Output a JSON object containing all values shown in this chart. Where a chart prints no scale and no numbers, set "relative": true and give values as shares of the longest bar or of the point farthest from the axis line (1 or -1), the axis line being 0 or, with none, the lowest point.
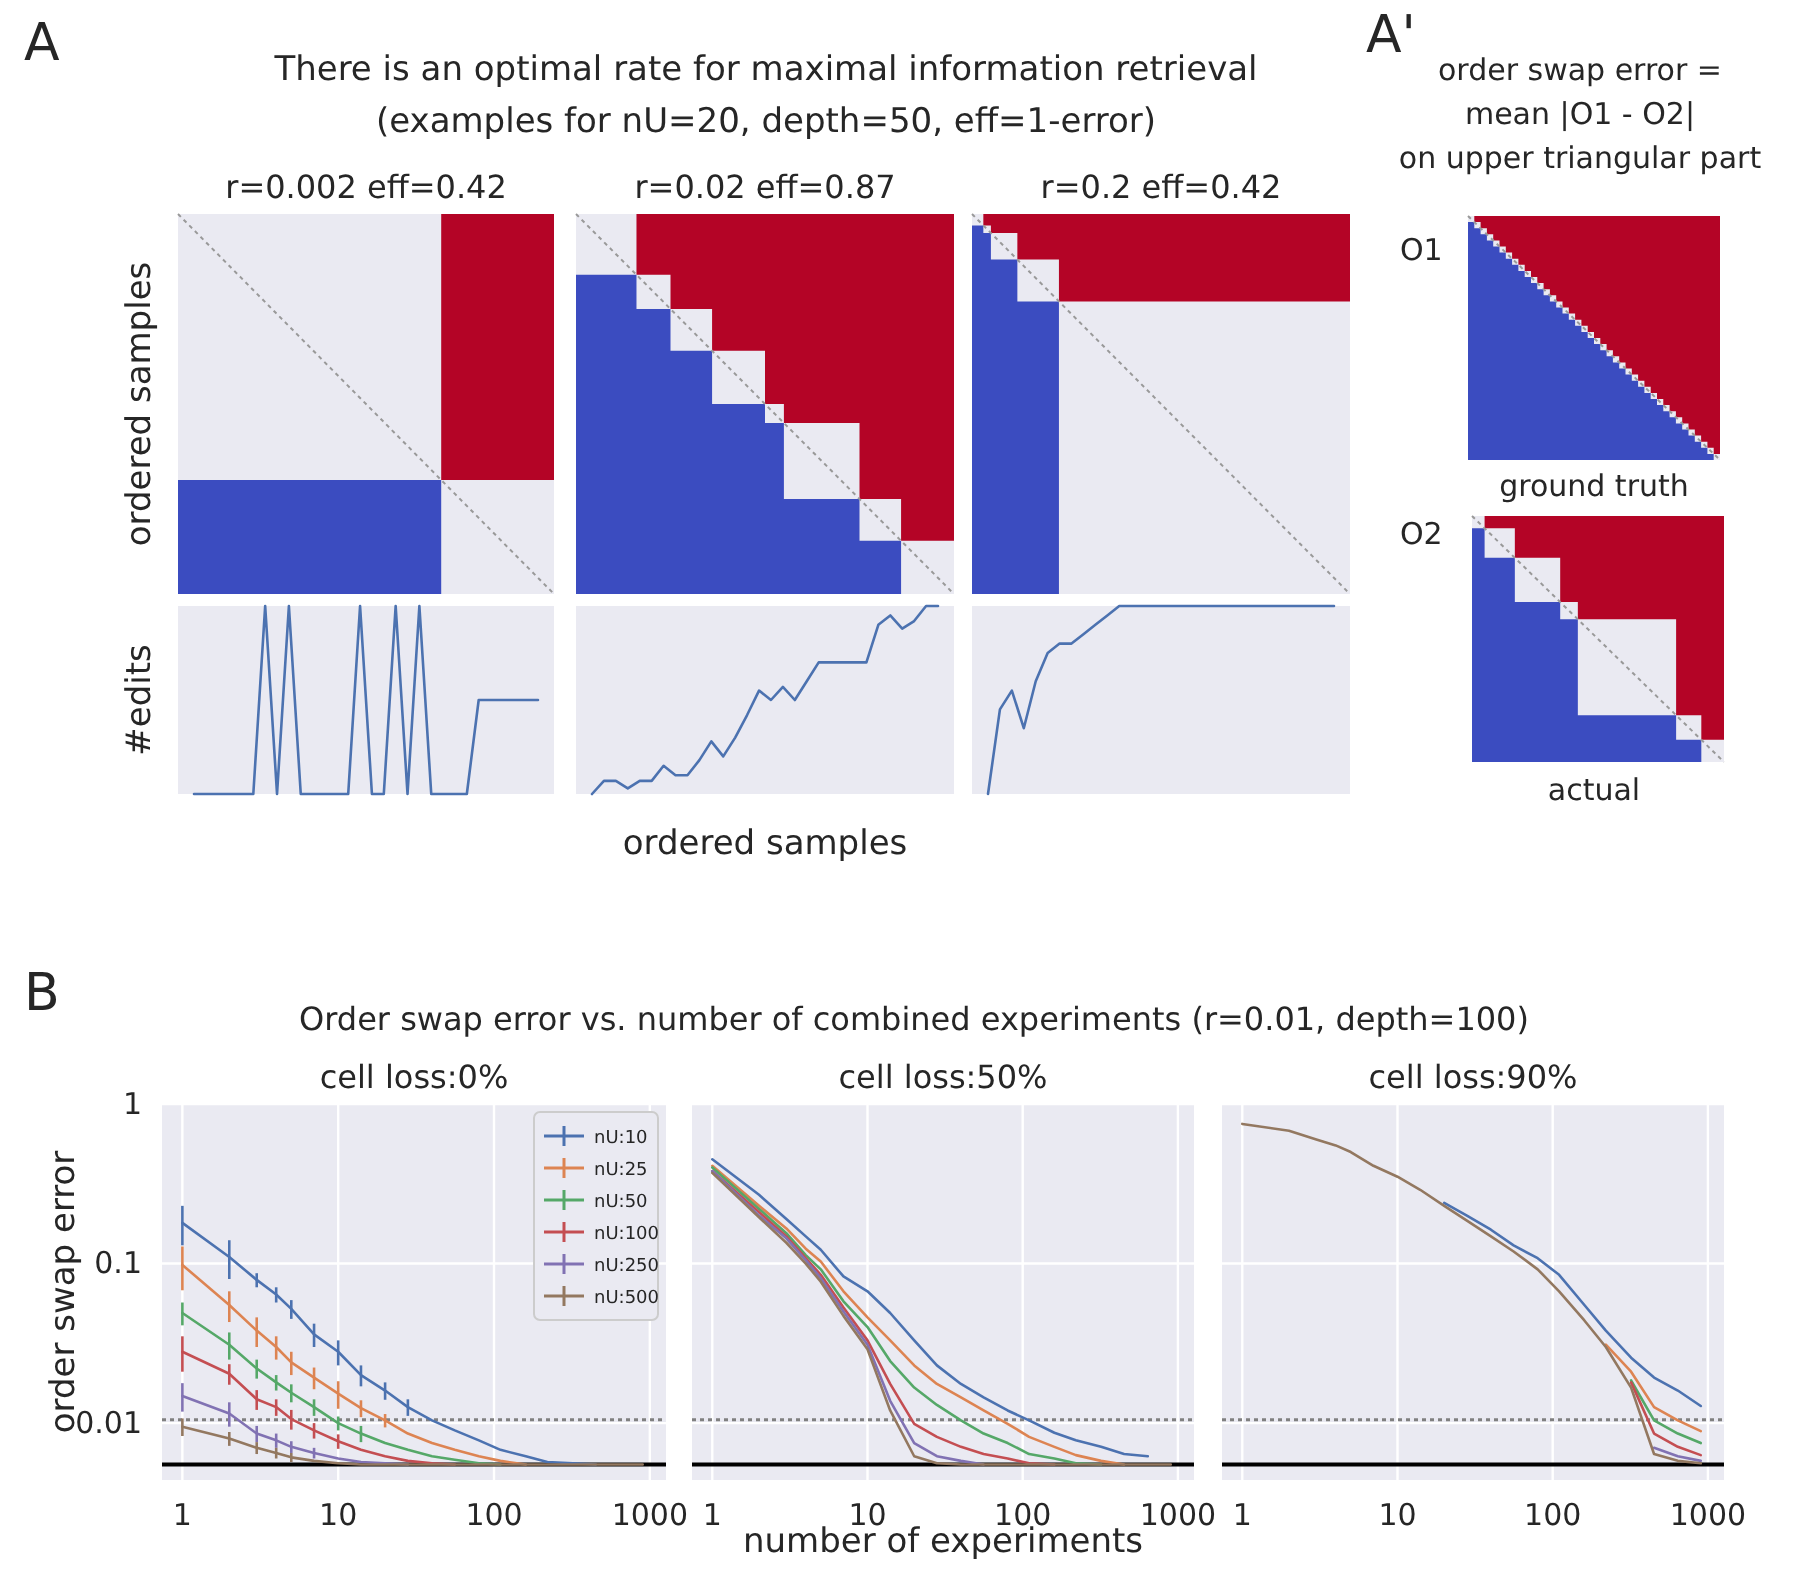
{
  "chart_data": [
    {
      "type": "other",
      "title": "r=0.002 eff=0.42",
      "ylabel": "ordered samples",
      "annotations": [
        "A",
        "There is an optimal rate for maximal information retrieval",
        "(examples for nU=20, depth=50, eff=1-error)"
      ]
    },
    {
      "type": "other",
      "title": "r=0.02 eff=0.87"
    },
    {
      "type": "other",
      "title": "r=0.2 eff=0.42"
    },
    {
      "type": "line",
      "relative": true,
      "ylabel": "#edits",
      "categories": [
        null,
        null,
        null,
        null,
        null,
        null,
        null,
        null,
        null,
        null,
        null,
        null,
        null,
        null,
        null,
        null,
        null,
        null,
        null,
        null,
        null,
        null,
        null,
        null,
        null,
        null,
        null,
        null,
        null,
        null
      ],
      "series": [
        {
          "color": "#4c72b0",
          "values": [
            0,
            0,
            0,
            0,
            0,
            0,
            1,
            0,
            1,
            0,
            0,
            0,
            0,
            0,
            1,
            0,
            0,
            1,
            0,
            1,
            0,
            0,
            0,
            0,
            0.5,
            0.5,
            0.5,
            0.5,
            0.5,
            0.5
          ]
        }
      ]
    },
    {
      "type": "line",
      "relative": true,
      "xlabel": "ordered samples",
      "categories": [
        null,
        null,
        null,
        null,
        null,
        null,
        null,
        null,
        null,
        null,
        null,
        null,
        null,
        null,
        null,
        null,
        null,
        null,
        null,
        null,
        null,
        null,
        null,
        null,
        null,
        null,
        null,
        null,
        null,
        null
      ],
      "series": [
        {
          "color": "#4c72b0",
          "values": [
            0,
            0.07,
            0.07,
            0.03,
            0.07,
            0.07,
            0.15,
            0.1,
            0.1,
            0.18,
            0.28,
            0.2,
            0.3,
            0.42,
            0.55,
            0.5,
            0.57,
            0.5,
            0.6,
            0.7,
            0.7,
            0.7,
            0.7,
            0.7,
            0.9,
            0.95,
            0.88,
            0.92,
            1,
            1
          ]
        }
      ]
    },
    {
      "type": "line",
      "relative": true,
      "categories": [
        null,
        null,
        null,
        null,
        null,
        null,
        null,
        null,
        null,
        null,
        null,
        null,
        null,
        null,
        null,
        null,
        null,
        null,
        null,
        null,
        null,
        null,
        null,
        null,
        null,
        null,
        null,
        null,
        null,
        null
      ],
      "series": [
        {
          "color": "#4c72b0",
          "values": [
            0,
            0.45,
            0.55,
            0.35,
            0.6,
            0.75,
            0.8,
            0.8,
            0.85,
            0.9,
            0.95,
            1,
            1,
            1,
            1,
            1,
            1,
            1,
            1,
            1,
            1,
            1,
            1,
            1,
            1,
            1,
            1,
            1,
            1,
            1
          ]
        }
      ]
    },
    {
      "type": "other",
      "annotations": [
        "A'",
        "order swap error =",
        "mean |O1 - O2|",
        "on upper triangular part",
        "O1",
        "ground truth",
        "O2",
        "actual"
      ]
    },
    {
      "type": "line",
      "title": "cell loss:0%",
      "ylabel": "order swap error",
      "log": "xy",
      "grid": true,
      "legend": "top right",
      "xlim": [
        0.74,
        1270
      ],
      "xticks": [
        1,
        10,
        100,
        1000
      ],
      "ylim": [
        0.0044,
        1
      ],
      "yticks": [
        1,
        0.1,
        0.01
      ],
      "annotations": [
        "B",
        "Order swap error vs. number of combined experiments (r=0.01, depth=100)"
      ],
      "ref_lines": [
        {
          "axis": "y",
          "value": 0.0105,
          "color": "#808080",
          "line_style": "dotted"
        },
        {
          "axis": "y",
          "value": 0.0055,
          "color": "#000000",
          "line_style": "solid"
        }
      ],
      "x": [
        1,
        2,
        3,
        4,
        5,
        7,
        10,
        14,
        20,
        28,
        40,
        56,
        80,
        110,
        160,
        220,
        320,
        450,
        640,
        900
      ],
      "series": [
        {
          "name": "nU:10",
          "color": "#4c72b0",
          "values": [
            0.18,
            0.11,
            0.079,
            0.064,
            0.052,
            0.036,
            0.028,
            0.02,
            0.016,
            0.0126,
            0.0104,
            0.009,
            0.0078,
            0.0068,
            0.0062,
            0.0057,
            0.0056,
            0.0055,
            null,
            null
          ],
          "errors": [
            0.05,
            0.03,
            0.008,
            0.007,
            0.007,
            0.006,
            0.005,
            0.003,
            0.002,
            0.0015,
            null,
            null,
            null,
            null,
            null,
            null,
            null,
            null,
            null,
            null
          ]
        },
        {
          "name": "nU:25",
          "color": "#dd8452",
          "values": [
            0.098,
            0.055,
            0.038,
            0.03,
            0.024,
            0.0193,
            0.0153,
            0.0124,
            0.0104,
            0.0086,
            0.0075,
            0.0068,
            0.0062,
            0.0058,
            0.0055,
            null,
            null,
            null,
            null,
            null
          ],
          "errors": [
            0.03,
            0.012,
            0.008,
            0.005,
            0.004,
            0.003,
            0.003,
            0.0015,
            0.001,
            null,
            null,
            null,
            null,
            null,
            null,
            null,
            null,
            null,
            null,
            null
          ]
        },
        {
          "name": "nU:50",
          "color": "#55a868",
          "values": [
            0.049,
            0.031,
            0.022,
            0.018,
            0.0155,
            0.0126,
            0.01,
            0.0086,
            0.0075,
            0.0068,
            0.0062,
            0.0059,
            0.0056,
            0.0055,
            null,
            null,
            null,
            null,
            null,
            null
          ],
          "errors": [
            0.008,
            0.006,
            0.003,
            0.002,
            0.002,
            0.0015,
            0.001,
            0.001,
            null,
            null,
            null,
            null,
            null,
            null,
            null,
            null,
            null,
            null,
            null,
            null
          ]
        },
        {
          "name": "nU:100",
          "color": "#c44e52",
          "values": [
            0.028,
            0.0204,
            0.0141,
            0.0126,
            0.0106,
            0.009,
            0.0077,
            0.0068,
            0.0062,
            0.0058,
            0.0056,
            0.0055,
            null,
            null,
            null,
            null,
            null,
            null,
            null,
            null
          ],
          "errors": [
            0.007,
            0.003,
            0.002,
            0.0015,
            0.0015,
            0.001,
            0.0008,
            null,
            null,
            null,
            null,
            null,
            null,
            null,
            null,
            null,
            null,
            null,
            null,
            null
          ]
        },
        {
          "name": "nU:250",
          "color": "#8172b3",
          "values": [
            0.0148,
            0.0115,
            0.0086,
            0.0078,
            0.0071,
            0.0065,
            0.006,
            0.0057,
            0.0056,
            0.0055,
            null,
            null,
            null,
            null,
            null,
            null,
            null,
            null,
            null,
            null
          ],
          "errors": [
            0.003,
            0.002,
            0.001,
            0.0008,
            0.0006,
            0.0005,
            null,
            null,
            null,
            null,
            null,
            null,
            null,
            null,
            null,
            null,
            null,
            null,
            null,
            null
          ]
        },
        {
          "name": "nU:500",
          "color": "#937860",
          "values": [
            0.0095,
            0.008,
            0.007,
            0.0065,
            0.0061,
            0.0058,
            0.0056,
            0.0055,
            0.0055,
            0.0055,
            0.0055,
            0.0055,
            0.0055,
            0.0055,
            0.0055,
            0.0055,
            0.0055,
            0.0055,
            0.0055,
            0.0055
          ],
          "errors": [
            0.0012,
            0.0008,
            0.0006,
            0.0005,
            0.0004,
            null,
            null,
            null,
            null,
            null,
            null,
            null,
            null,
            null,
            null,
            null,
            null,
            null,
            null,
            null
          ]
        }
      ]
    },
    {
      "type": "line",
      "title": "cell loss:50%",
      "xlabel": "number of experiments",
      "log": "xy",
      "grid": true,
      "tick_labels": "x",
      "xlim": [
        0.74,
        1270
      ],
      "xticks": [
        1,
        10,
        100,
        1000
      ],
      "ylim": [
        0.0044,
        1
      ],
      "yticks": [
        1,
        0.1,
        0.01
      ],
      "ref_lines": [
        {
          "axis": "y",
          "value": 0.0105,
          "color": "#808080",
          "line_style": "dotted"
        },
        {
          "axis": "y",
          "value": 0.0055,
          "color": "#000000",
          "line_style": "solid"
        }
      ],
      "x": [
        1,
        2,
        3,
        4,
        5,
        7,
        10,
        14,
        20,
        28,
        40,
        56,
        80,
        110,
        160,
        220,
        320,
        450,
        640,
        900
      ],
      "series": [
        {
          "color": "#4c72b0",
          "values": [
            0.45,
            0.27,
            0.19,
            0.148,
            0.122,
            0.083,
            0.067,
            0.049,
            0.033,
            0.023,
            0.0176,
            0.0145,
            0.012,
            0.0104,
            0.0087,
            0.0078,
            0.0071,
            0.0064,
            0.0062,
            null
          ]
        },
        {
          "color": "#dd8452",
          "values": [
            0.41,
            0.23,
            0.166,
            0.124,
            0.103,
            0.067,
            0.046,
            0.033,
            0.023,
            0.0176,
            0.0145,
            0.012,
            0.0099,
            0.0082,
            0.0071,
            0.0063,
            0.0058,
            0.0055,
            null,
            null
          ]
        },
        {
          "color": "#55a868",
          "values": [
            0.4,
            0.22,
            0.155,
            0.113,
            0.092,
            0.058,
            0.04,
            0.0245,
            0.0167,
            0.013,
            0.0104,
            0.0086,
            0.0075,
            0.0064,
            0.006,
            0.0056,
            0.0055,
            null,
            null,
            null
          ]
        },
        {
          "color": "#c44e52",
          "values": [
            0.38,
            0.21,
            0.148,
            0.108,
            0.085,
            0.053,
            0.033,
            0.0176,
            0.0099,
            0.0082,
            0.0071,
            0.0064,
            0.006,
            0.0056,
            0.0055,
            null,
            null,
            null,
            null,
            null
          ]
        },
        {
          "color": "#8172b3",
          "values": [
            0.38,
            0.2,
            0.144,
            0.105,
            0.081,
            0.05,
            0.031,
            0.0138,
            0.0075,
            0.0062,
            0.0058,
            0.0055,
            null,
            null,
            null,
            null,
            null,
            null,
            null,
            null
          ]
        },
        {
          "color": "#937860",
          "values": [
            0.37,
            0.195,
            0.135,
            0.1,
            0.077,
            0.047,
            0.029,
            0.012,
            0.0062,
            0.0056,
            0.0055,
            0.0055,
            0.0055,
            0.0055,
            0.0055,
            0.0055,
            0.0055,
            0.0055,
            0.0055,
            0.0055
          ]
        }
      ]
    },
    {
      "type": "line",
      "title": "cell loss:90%",
      "log": "xy",
      "grid": true,
      "tick_labels": "x",
      "xlim": [
        0.74,
        1270
      ],
      "xticks": [
        1,
        10,
        100,
        1000
      ],
      "ylim": [
        0.0044,
        1
      ],
      "yticks": [
        1,
        0.1,
        0.01
      ],
      "ref_lines": [
        {
          "axis": "y",
          "value": 0.0105,
          "color": "#808080",
          "line_style": "dotted"
        },
        {
          "axis": "y",
          "value": 0.0055,
          "color": "#000000",
          "line_style": "solid"
        }
      ],
      "x": [
        1,
        2,
        3,
        4,
        5,
        7,
        10,
        14,
        20,
        28,
        40,
        56,
        80,
        110,
        160,
        220,
        320,
        450,
        640,
        900
      ],
      "series": [
        {
          "color": "#4c72b0",
          "values": [
            null,
            null,
            null,
            null,
            null,
            null,
            null,
            null,
            0.24,
            0.2,
            0.163,
            0.13,
            0.108,
            0.085,
            0.055,
            0.038,
            0.0257,
            0.0193,
            0.016,
            0.0128
          ]
        },
        {
          "color": "#dd8452",
          "values": [
            null,
            null,
            null,
            null,
            null,
            null,
            null,
            null,
            null,
            null,
            null,
            null,
            null,
            null,
            null,
            0.031,
            0.021,
            0.0126,
            0.0104,
            0.0089
          ]
        },
        {
          "color": "#55a868",
          "values": [
            null,
            null,
            null,
            null,
            null,
            null,
            null,
            null,
            null,
            null,
            null,
            null,
            null,
            null,
            null,
            null,
            0.0185,
            0.0104,
            0.0086,
            0.0075
          ]
        },
        {
          "color": "#c44e52",
          "values": [
            null,
            null,
            null,
            null,
            null,
            null,
            null,
            null,
            null,
            null,
            null,
            null,
            null,
            null,
            null,
            null,
            0.018,
            0.0086,
            0.0071,
            0.0063
          ]
        },
        {
          "color": "#8172b3",
          "values": [
            null,
            null,
            null,
            null,
            null,
            null,
            null,
            null,
            null,
            null,
            null,
            null,
            null,
            null,
            null,
            null,
            null,
            0.007,
            0.0062,
            0.0058
          ]
        },
        {
          "color": "#937860",
          "values": [
            0.75,
            0.68,
            0.6,
            0.55,
            0.5,
            0.41,
            0.35,
            0.29,
            0.23,
            0.186,
            0.148,
            0.119,
            0.092,
            0.067,
            0.044,
            0.03,
            0.0167,
            0.0064,
            0.0058,
            0.0056
          ]
        }
      ]
    }
  ]
}
